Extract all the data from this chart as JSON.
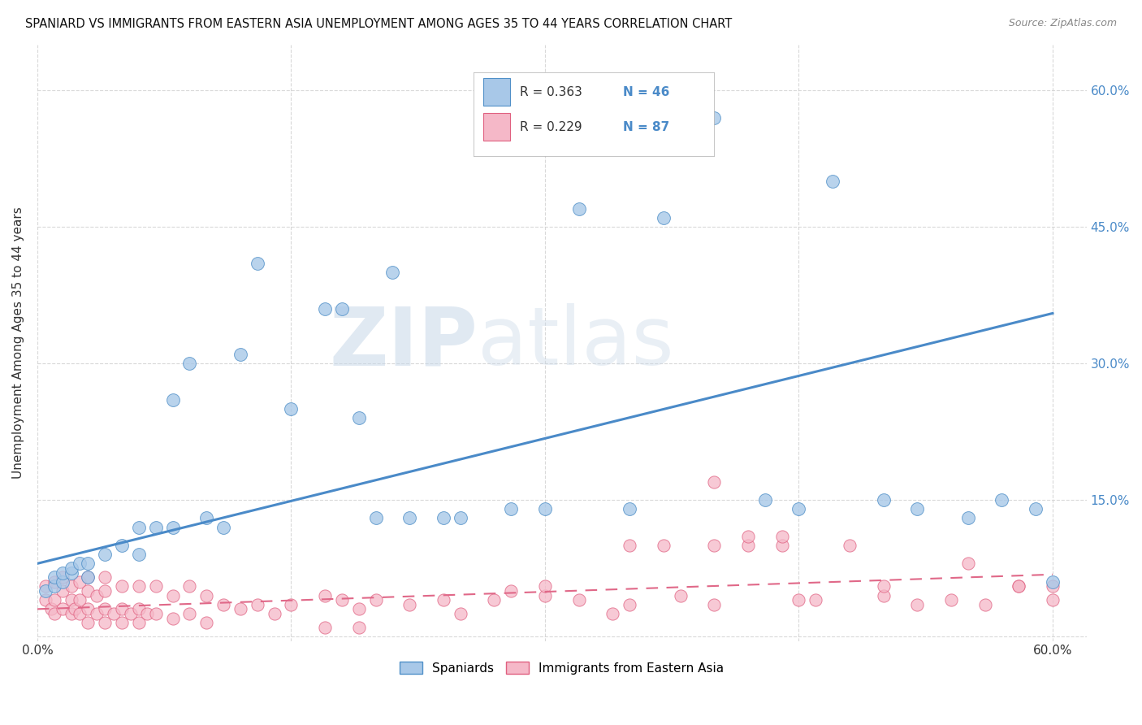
{
  "title": "SPANIARD VS IMMIGRANTS FROM EASTERN ASIA UNEMPLOYMENT AMONG AGES 35 TO 44 YEARS CORRELATION CHART",
  "source": "Source: ZipAtlas.com",
  "ylabel": "Unemployment Among Ages 35 to 44 years",
  "ytick_values": [
    0.0,
    0.15,
    0.3,
    0.45,
    0.6
  ],
  "ytick_labels": [
    "",
    "15.0%",
    "30.0%",
    "45.0%",
    "60.0%"
  ],
  "xtick_values": [
    0.0,
    0.15,
    0.3,
    0.45,
    0.6
  ],
  "xtick_labels": [
    "0.0%",
    "",
    "",
    "",
    "60.0%"
  ],
  "xlim": [
    0.0,
    0.62
  ],
  "ylim": [
    -0.005,
    0.65
  ],
  "legend_label1": "Spaniards",
  "legend_label2": "Immigrants from Eastern Asia",
  "R1": 0.363,
  "N1": 46,
  "R2": 0.229,
  "N2": 87,
  "color_blue": "#a8c8e8",
  "color_pink": "#f5b8c8",
  "edge_blue": "#5090c8",
  "edge_pink": "#e06080",
  "line_blue": "#4a8ac8",
  "line_pink": "#e06888",
  "watermark_zip": "ZIP",
  "watermark_atlas": "atlas",
  "blue_x": [
    0.005,
    0.01,
    0.01,
    0.015,
    0.015,
    0.02,
    0.02,
    0.025,
    0.03,
    0.03,
    0.04,
    0.05,
    0.06,
    0.06,
    0.07,
    0.08,
    0.08,
    0.09,
    0.1,
    0.11,
    0.12,
    0.13,
    0.15,
    0.17,
    0.18,
    0.19,
    0.2,
    0.22,
    0.25,
    0.28,
    0.3,
    0.32,
    0.35,
    0.37,
    0.4,
    0.43,
    0.45,
    0.47,
    0.5,
    0.52,
    0.55,
    0.57,
    0.59,
    0.6,
    0.21,
    0.24
  ],
  "blue_y": [
    0.05,
    0.055,
    0.065,
    0.06,
    0.07,
    0.07,
    0.075,
    0.08,
    0.065,
    0.08,
    0.09,
    0.1,
    0.09,
    0.12,
    0.12,
    0.12,
    0.26,
    0.3,
    0.13,
    0.12,
    0.31,
    0.41,
    0.25,
    0.36,
    0.36,
    0.24,
    0.13,
    0.13,
    0.13,
    0.14,
    0.14,
    0.47,
    0.14,
    0.46,
    0.57,
    0.15,
    0.14,
    0.5,
    0.15,
    0.14,
    0.13,
    0.15,
    0.14,
    0.06,
    0.4,
    0.13
  ],
  "pink_x": [
    0.005,
    0.005,
    0.008,
    0.01,
    0.01,
    0.01,
    0.015,
    0.015,
    0.015,
    0.02,
    0.02,
    0.02,
    0.022,
    0.025,
    0.025,
    0.025,
    0.03,
    0.03,
    0.03,
    0.03,
    0.035,
    0.035,
    0.04,
    0.04,
    0.04,
    0.04,
    0.045,
    0.05,
    0.05,
    0.05,
    0.055,
    0.06,
    0.06,
    0.06,
    0.065,
    0.07,
    0.07,
    0.08,
    0.08,
    0.09,
    0.09,
    0.1,
    0.1,
    0.11,
    0.12,
    0.13,
    0.14,
    0.15,
    0.17,
    0.18,
    0.19,
    0.2,
    0.22,
    0.24,
    0.25,
    0.27,
    0.28,
    0.3,
    0.32,
    0.34,
    0.35,
    0.37,
    0.38,
    0.4,
    0.42,
    0.44,
    0.46,
    0.48,
    0.5,
    0.52,
    0.54,
    0.56,
    0.58,
    0.6,
    0.3,
    0.35,
    0.4,
    0.45,
    0.5,
    0.55,
    0.58,
    0.6,
    0.17,
    0.19,
    0.4,
    0.42,
    0.44
  ],
  "pink_y": [
    0.04,
    0.055,
    0.03,
    0.025,
    0.04,
    0.06,
    0.03,
    0.05,
    0.065,
    0.025,
    0.04,
    0.055,
    0.03,
    0.025,
    0.04,
    0.06,
    0.015,
    0.03,
    0.05,
    0.065,
    0.025,
    0.045,
    0.015,
    0.03,
    0.05,
    0.065,
    0.025,
    0.015,
    0.03,
    0.055,
    0.025,
    0.015,
    0.03,
    0.055,
    0.025,
    0.025,
    0.055,
    0.02,
    0.045,
    0.025,
    0.055,
    0.015,
    0.045,
    0.035,
    0.03,
    0.035,
    0.025,
    0.035,
    0.045,
    0.04,
    0.03,
    0.04,
    0.035,
    0.04,
    0.025,
    0.04,
    0.05,
    0.045,
    0.04,
    0.025,
    0.035,
    0.1,
    0.045,
    0.035,
    0.1,
    0.1,
    0.04,
    0.1,
    0.045,
    0.035,
    0.04,
    0.035,
    0.055,
    0.04,
    0.055,
    0.1,
    0.1,
    0.04,
    0.055,
    0.08,
    0.055,
    0.055,
    0.01,
    0.01,
    0.17,
    0.11,
    0.11
  ],
  "blue_line_x0": 0.0,
  "blue_line_y0": 0.08,
  "blue_line_x1": 0.6,
  "blue_line_y1": 0.355,
  "pink_line_x0": 0.0,
  "pink_line_y0": 0.03,
  "pink_line_x1": 0.6,
  "pink_line_y1": 0.068,
  "grid_color": "#d0d0d0",
  "bg_color": "#ffffff"
}
